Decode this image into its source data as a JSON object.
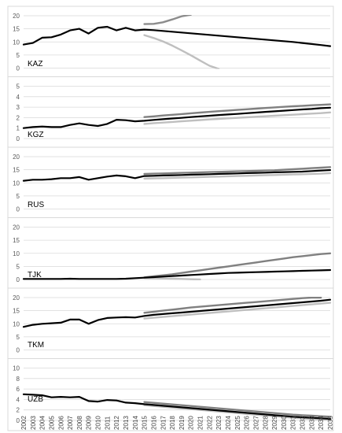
{
  "chart_data": {
    "type": "line",
    "x": [
      2002,
      2003,
      2004,
      2005,
      2006,
      2007,
      2008,
      2009,
      2010,
      2011,
      2012,
      2013,
      2014,
      2015,
      2016,
      2017,
      2018,
      2019,
      2020,
      2021,
      2022,
      2023,
      2024,
      2025,
      2026,
      2027,
      2028,
      2029,
      2030,
      2031,
      2032,
      2033,
      2034,
      2035
    ],
    "x_ticks": [
      "2002",
      "2003",
      "2004",
      "2005",
      "2006",
      "2007",
      "2008",
      "2009",
      "2010",
      "2011",
      "2012",
      "2013",
      "2014",
      "2015",
      "2016",
      "2017",
      "2018",
      "2019",
      "2020",
      "2021",
      "2022",
      "2023",
      "2024",
      "2025",
      "2026",
      "2027",
      "2028",
      "2029",
      "2030",
      "2031",
      "2032",
      "2033",
      "2034",
      "2035"
    ],
    "panels": [
      {
        "label": "KAZ",
        "ylim": [
          0,
          20
        ],
        "yticks": [
          "0",
          "5",
          "10",
          "15",
          "20"
        ],
        "series": [
          {
            "color": "#000000",
            "values": [
              9.0,
              9.6,
              11.6,
              11.8,
              12.8,
              14.4,
              15.0,
              13.2,
              15.4,
              15.8,
              14.4,
              15.4,
              14.4,
              14.7,
              14.5,
              14.2,
              13.9,
              13.6,
              13.3,
              13.0,
              12.7,
              12.4,
              12.1,
              11.8,
              11.5,
              11.2,
              10.9,
              10.6,
              10.3,
              10.0,
              9.6,
              9.2,
              8.8,
              8.4
            ]
          },
          {
            "color": "#8c8c8c",
            "values": [
              null,
              null,
              null,
              null,
              null,
              null,
              null,
              null,
              null,
              null,
              null,
              null,
              null,
              16.8,
              16.9,
              17.5,
              18.6,
              19.8,
              20.4,
              null,
              null,
              null,
              null,
              null,
              null,
              null,
              null,
              null,
              null,
              null,
              null,
              null,
              null,
              null
            ]
          },
          {
            "color": "#bfbfbf",
            "values": [
              null,
              null,
              null,
              null,
              null,
              null,
              null,
              null,
              null,
              null,
              null,
              null,
              null,
              12.6,
              11.5,
              10.2,
              8.6,
              6.8,
              4.9,
              2.9,
              0.9,
              -0.3,
              null,
              null,
              null,
              null,
              null,
              null,
              null,
              null,
              null,
              null,
              null,
              null
            ]
          }
        ]
      },
      {
        "label": "KGZ",
        "ylim": [
          0,
          5
        ],
        "yticks": [
          "0",
          "1",
          "2",
          "3",
          "4",
          "5"
        ],
        "series": [
          {
            "color": "#000000",
            "values": [
              1.0,
              1.1,
              1.15,
              1.1,
              1.1,
              1.3,
              1.45,
              1.3,
              1.2,
              1.4,
              1.8,
              1.75,
              1.65,
              1.7,
              1.78,
              1.85,
              1.92,
              1.98,
              2.05,
              2.12,
              2.18,
              2.25,
              2.3,
              2.35,
              2.42,
              2.48,
              2.55,
              2.6,
              2.66,
              2.72,
              2.78,
              2.83,
              2.9,
              2.95
            ]
          },
          {
            "color": "#808080",
            "values": [
              null,
              null,
              null,
              null,
              null,
              null,
              null,
              null,
              null,
              null,
              null,
              null,
              null,
              2.05,
              2.12,
              2.2,
              2.27,
              2.34,
              2.41,
              2.48,
              2.55,
              2.62,
              2.68,
              2.74,
              2.8,
              2.86,
              2.92,
              2.98,
              3.03,
              3.08,
              3.13,
              3.18,
              3.22,
              3.26
            ]
          },
          {
            "color": "#bfbfbf",
            "values": [
              null,
              null,
              null,
              null,
              null,
              null,
              null,
              null,
              null,
              null,
              null,
              null,
              null,
              1.4,
              1.47,
              1.53,
              1.59,
              1.65,
              1.71,
              1.77,
              1.83,
              1.88,
              1.93,
              1.98,
              2.03,
              2.08,
              2.13,
              2.18,
              2.23,
              2.28,
              2.33,
              2.38,
              2.43,
              2.5
            ]
          }
        ]
      },
      {
        "label": "RUS",
        "ylim": [
          0,
          20
        ],
        "yticks": [
          "0",
          "5",
          "10",
          "15",
          "20"
        ],
        "series": [
          {
            "color": "#000000",
            "values": [
              10.8,
              11.2,
              11.2,
              11.4,
              11.8,
              11.8,
              12.2,
              11.2,
              11.8,
              12.4,
              12.8,
              12.5,
              11.8,
              12.6,
              12.7,
              12.8,
              12.9,
              13.0,
              13.1,
              13.2,
              13.3,
              13.4,
              13.5,
              13.6,
              13.7,
              13.8,
              13.9,
              14.0,
              14.1,
              14.2,
              14.3,
              14.5,
              14.7,
              14.9
            ]
          },
          {
            "color": "#808080",
            "values": [
              null,
              null,
              null,
              null,
              null,
              null,
              null,
              null,
              null,
              null,
              null,
              null,
              null,
              13.4,
              13.5,
              13.6,
              13.7,
              13.8,
              13.9,
              14.0,
              14.1,
              14.2,
              14.3,
              14.4,
              14.5,
              14.6,
              14.7,
              14.8,
              15.0,
              15.2,
              15.4,
              15.6,
              15.8,
              16.0
            ]
          },
          {
            "color": "#bfbfbf",
            "values": [
              null,
              null,
              null,
              null,
              null,
              null,
              null,
              null,
              null,
              null,
              null,
              null,
              null,
              11.6,
              11.7,
              11.8,
              11.9,
              12.0,
              12.1,
              12.2,
              12.3,
              12.4,
              12.5,
              12.6,
              12.7,
              12.8,
              12.9,
              13.0,
              13.1,
              13.2,
              13.3,
              13.4,
              13.5,
              13.7
            ]
          }
        ]
      },
      {
        "label": "TJK",
        "ylim": [
          0,
          20
        ],
        "yticks": [
          "0",
          "5",
          "10",
          "15",
          "20"
        ],
        "series": [
          {
            "color": "#000000",
            "values": [
              0.2,
              0.2,
              0.2,
              0.2,
              0.2,
              0.3,
              0.2,
              0.2,
              0.2,
              0.2,
              0.2,
              0.3,
              0.5,
              0.7,
              0.9,
              1.1,
              1.3,
              1.5,
              1.7,
              1.9,
              2.1,
              2.3,
              2.5,
              2.6,
              2.7,
              2.8,
              2.9,
              3.0,
              3.1,
              3.2,
              3.3,
              3.4,
              3.5,
              3.6
            ]
          },
          {
            "color": "#808080",
            "values": [
              null,
              null,
              null,
              null,
              null,
              null,
              null,
              null,
              null,
              null,
              null,
              null,
              null,
              0.8,
              1.2,
              1.6,
              2.0,
              2.5,
              3.0,
              3.5,
              4.0,
              4.5,
              5.0,
              5.5,
              6.0,
              6.5,
              7.0,
              7.5,
              8.0,
              8.5,
              8.9,
              9.3,
              9.7,
              10.0
            ]
          },
          {
            "color": "#bfbfbf",
            "values": [
              null,
              null,
              null,
              null,
              null,
              null,
              null,
              null,
              null,
              null,
              null,
              null,
              null,
              0.6,
              0.5,
              0.4,
              0.3,
              0.2,
              0.1,
              0.0,
              null,
              null,
              null,
              null,
              null,
              null,
              null,
              null,
              null,
              null,
              null,
              null,
              null,
              null
            ]
          }
        ]
      },
      {
        "label": "TKM",
        "ylim": [
          0,
          20
        ],
        "yticks": [
          "0",
          "5",
          "10",
          "15",
          "20"
        ],
        "series": [
          {
            "color": "#000000",
            "values": [
              8.8,
              9.6,
              10.0,
              10.2,
              10.4,
              11.6,
              11.6,
              10.0,
              11.4,
              12.2,
              12.4,
              12.5,
              12.4,
              13.0,
              13.4,
              13.7,
              14.0,
              14.3,
              14.6,
              14.9,
              15.2,
              15.5,
              15.8,
              16.1,
              16.4,
              16.7,
              17.0,
              17.3,
              17.6,
              17.9,
              18.2,
              18.5,
              18.8,
              19.2
            ]
          },
          {
            "color": "#808080",
            "values": [
              null,
              null,
              null,
              null,
              null,
              null,
              null,
              null,
              null,
              null,
              null,
              null,
              null,
              14.2,
              14.6,
              15.0,
              15.4,
              15.8,
              16.2,
              16.5,
              16.8,
              17.1,
              17.4,
              17.7,
              18.0,
              18.3,
              18.6,
              18.9,
              19.2,
              19.5,
              19.8,
              20.0,
              20.0,
              null
            ]
          },
          {
            "color": "#bfbfbf",
            "values": [
              null,
              null,
              null,
              null,
              null,
              null,
              null,
              null,
              null,
              null,
              null,
              null,
              null,
              12.0,
              12.3,
              12.6,
              12.9,
              13.2,
              13.5,
              13.8,
              14.1,
              14.4,
              14.7,
              15.0,
              15.3,
              15.6,
              15.9,
              16.2,
              16.5,
              16.8,
              17.1,
              17.4,
              17.7,
              18.0
            ]
          }
        ]
      },
      {
        "label": "UZB",
        "ylim": [
          0,
          10
        ],
        "yticks": [
          "0",
          "2",
          "4",
          "6",
          "8",
          "10"
        ],
        "series": [
          {
            "color": "#000000",
            "values": [
              5.0,
              4.9,
              4.8,
              4.4,
              4.5,
              4.4,
              4.5,
              3.7,
              3.6,
              3.9,
              3.8,
              3.4,
              3.3,
              3.1,
              2.95,
              2.8,
              2.65,
              2.5,
              2.35,
              2.2,
              2.05,
              1.9,
              1.75,
              1.6,
              1.45,
              1.3,
              1.15,
              1.0,
              0.85,
              0.7,
              0.6,
              0.5,
              0.4,
              0.3
            ]
          },
          {
            "color": "#808080",
            "values": [
              null,
              null,
              null,
              null,
              null,
              null,
              null,
              null,
              null,
              null,
              null,
              null,
              null,
              3.5,
              3.35,
              3.2,
              3.05,
              2.9,
              2.75,
              2.6,
              2.45,
              2.3,
              2.15,
              2.0,
              1.85,
              1.7,
              1.55,
              1.4,
              1.25,
              1.1,
              1.0,
              0.9,
              0.8,
              0.7
            ]
          },
          {
            "color": "#bfbfbf",
            "values": [
              null,
              null,
              null,
              null,
              null,
              null,
              null,
              null,
              null,
              null,
              null,
              null,
              null,
              2.9,
              2.75,
              2.6,
              2.45,
              2.3,
              2.15,
              2.0,
              1.85,
              1.7,
              1.55,
              1.4,
              1.25,
              1.1,
              0.95,
              0.8,
              0.65,
              0.5,
              0.4,
              0.3,
              0.2,
              0.1
            ]
          }
        ]
      }
    ]
  }
}
